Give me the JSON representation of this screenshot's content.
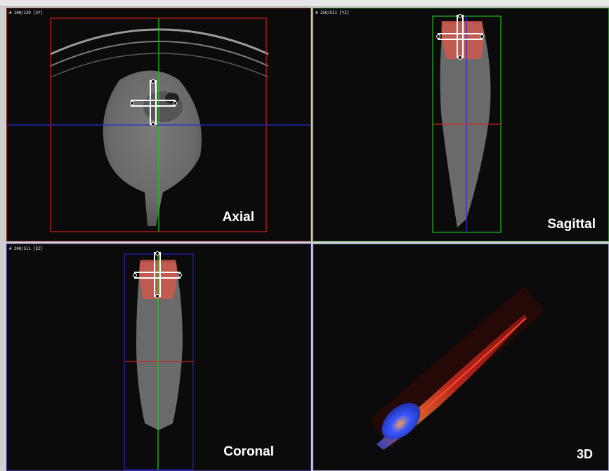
{
  "views": {
    "axial": {
      "label": "Axial",
      "slice_info": "# 100/139 [XY]"
    },
    "sagittal": {
      "label": "Sagittal",
      "slice_info": "# 250/511 [YZ]"
    },
    "coronal": {
      "label": "Coronal",
      "slice_info": "# 200/511 [XZ]"
    },
    "view3d": {
      "label": "3D"
    }
  },
  "colors": {
    "axial_frame": "#d21f1f",
    "sagittal_frame": "#22b822",
    "coronal_frame": "#2626c8",
    "crosshair_green": "#21c021",
    "crosshair_blue": "#2a2ad6",
    "crosshair_red": "#d62020",
    "tissue_gray": "#8a8a8a",
    "roi_red": "#d4574a"
  },
  "icons": {
    "move_handle": "crosshair-handle-icon"
  }
}
